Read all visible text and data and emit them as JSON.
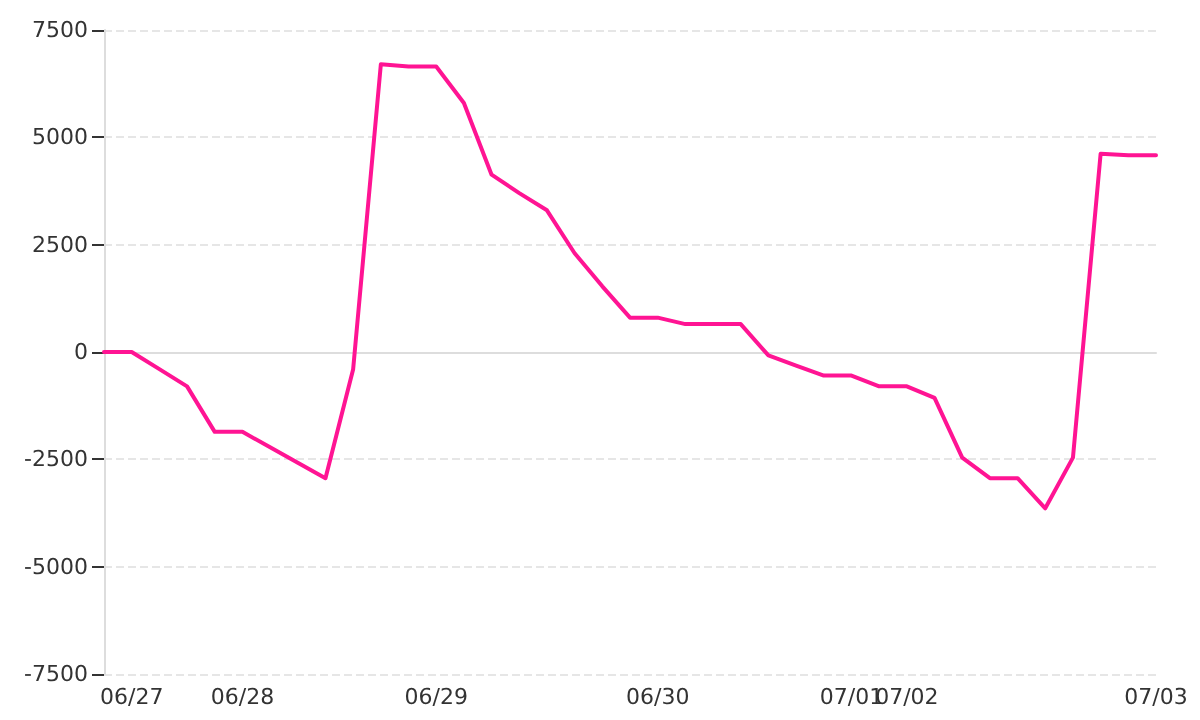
{
  "chart_data": {
    "type": "line",
    "categories": [
      null,
      "06/27",
      null,
      null,
      null,
      "06/28",
      null,
      null,
      null,
      null,
      null,
      null,
      "06/29",
      null,
      null,
      null,
      null,
      null,
      null,
      null,
      "06/30",
      null,
      null,
      null,
      null,
      null,
      null,
      "07/01",
      null,
      "07/02",
      null,
      null,
      null,
      null,
      null,
      null,
      null,
      null,
      "07/03"
    ],
    "series": [
      {
        "color": "#ff1493",
        "values": [
          0,
          0,
          -400,
          -800,
          -1860,
          -1860,
          -2220,
          -2580,
          -2940,
          -400,
          6700,
          6650,
          6650,
          5800,
          4130,
          3700,
          3300,
          2300,
          1530,
          800,
          800,
          650,
          650,
          650,
          -80,
          -320,
          -550,
          -550,
          -800,
          -800,
          -1070,
          -2460,
          -2940,
          -2940,
          -3640,
          -2460,
          4620,
          4580,
          4580
        ]
      }
    ],
    "ylim": [
      -7500,
      7500
    ],
    "yticks": [
      -7500,
      -5000,
      -2500,
      0,
      2500,
      5000,
      7500
    ],
    "grid": "y",
    "marker": "none",
    "line_style": "solid"
  }
}
